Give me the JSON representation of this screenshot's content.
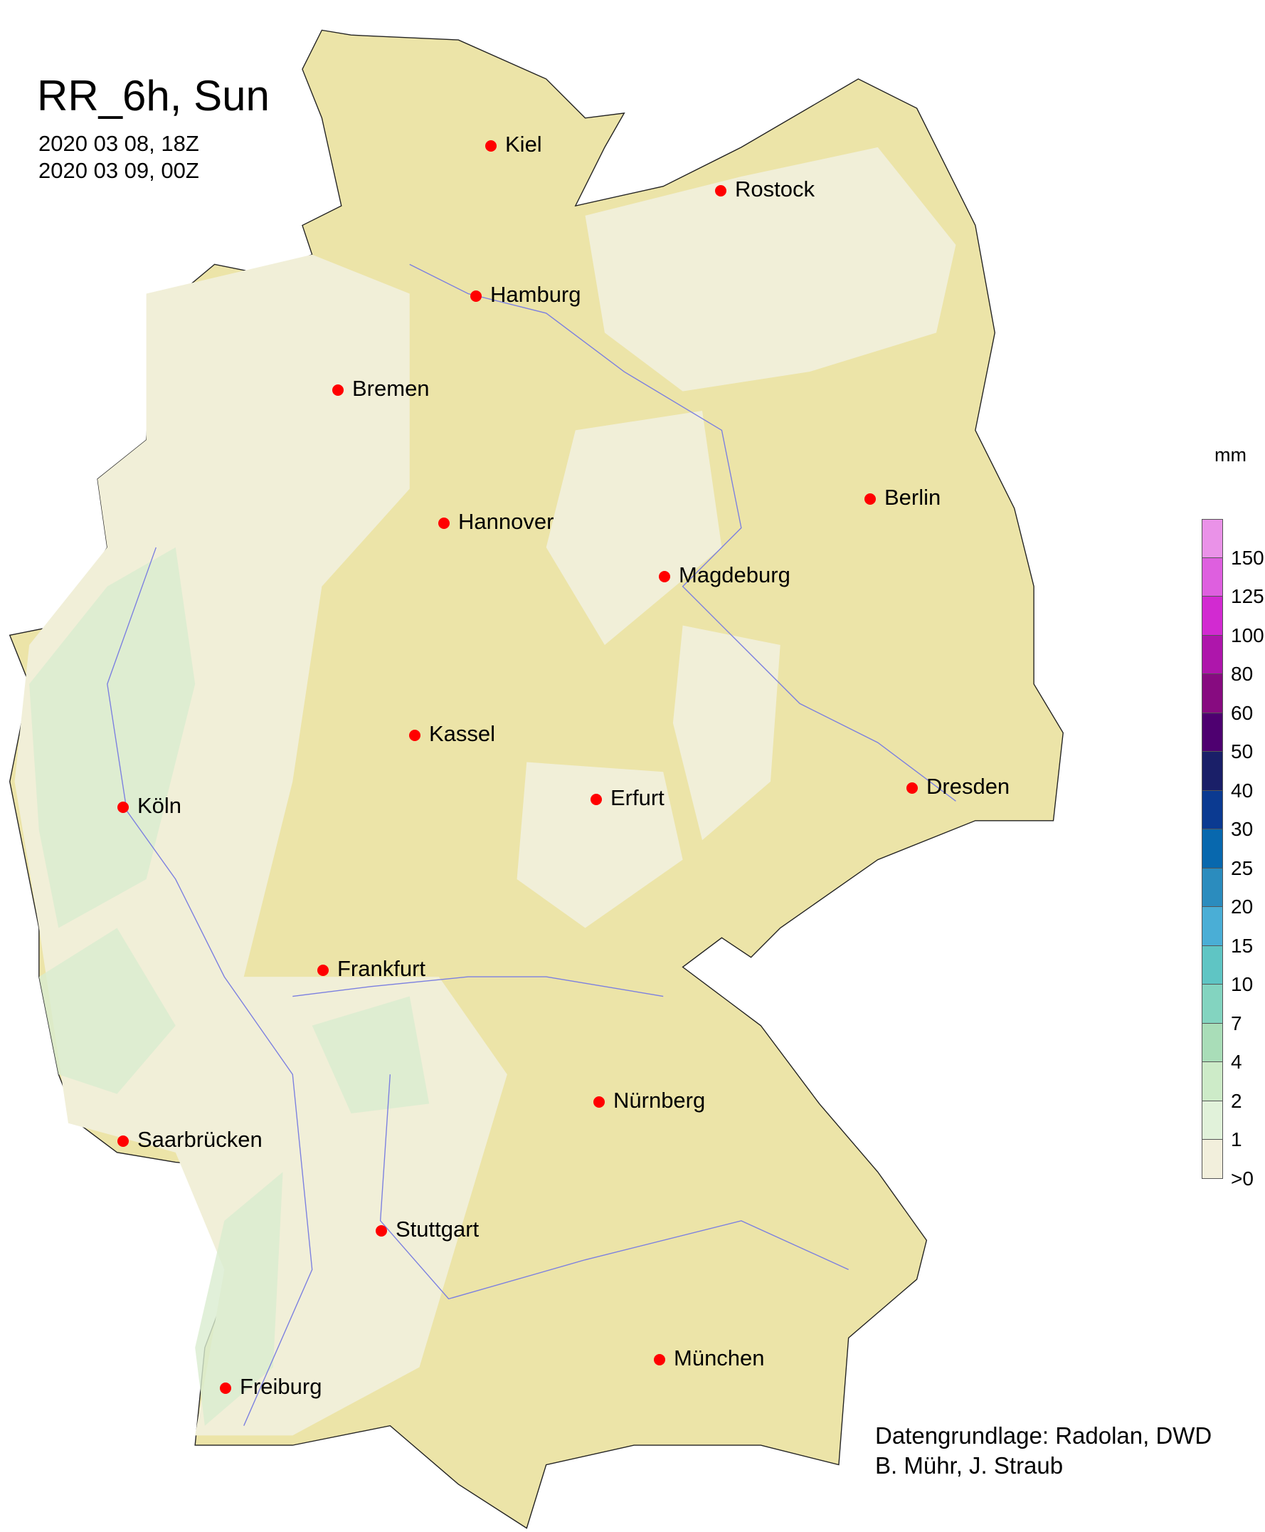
{
  "title": "RR_6h, Sun",
  "period": [
    "2020 03 08, 18Z",
    "2020 03 09, 00Z"
  ],
  "legend": {
    "unit": "mm",
    "labels": [
      "150",
      "125",
      "100",
      "80",
      "60",
      "50",
      "40",
      "30",
      "25",
      "20",
      "15",
      "10",
      "7",
      "4",
      "2",
      "1",
      ">0"
    ],
    "colors": [
      "#ea92e8",
      "#de5fdf",
      "#d22ad1",
      "#ae16ab",
      "#870b80",
      "#4e0070",
      "#1a1f68",
      "#0b3a91",
      "#0868ae",
      "#2b8cbe",
      "#4aaed6",
      "#5fc5c4",
      "#83d4c0",
      "#a9ddb8",
      "#cdebc8",
      "#e1f2da",
      "#f2efdc"
    ]
  },
  "cities": [
    {
      "name": "Kiel"
    },
    {
      "name": "Rostock"
    },
    {
      "name": "Hamburg"
    },
    {
      "name": "Bremen"
    },
    {
      "name": "Berlin"
    },
    {
      "name": "Hannover"
    },
    {
      "name": "Magdeburg"
    },
    {
      "name": "Kassel"
    },
    {
      "name": "Dresden"
    },
    {
      "name": "Erfurt"
    },
    {
      "name": "Köln"
    },
    {
      "name": "Frankfurt"
    },
    {
      "name": "Nürnberg"
    },
    {
      "name": "Saarbrücken"
    },
    {
      "name": "Stuttgart"
    },
    {
      "name": "München"
    },
    {
      "name": "Freiburg"
    }
  ],
  "credits": [
    "Datengrundlage: Radolan, DWD",
    "B. Mühr, J. Straub"
  ],
  "colors": {
    "land_no_rain": "#ece4a8",
    "city_marker": "#ff0000",
    "rivers": "#7b7fe0"
  }
}
